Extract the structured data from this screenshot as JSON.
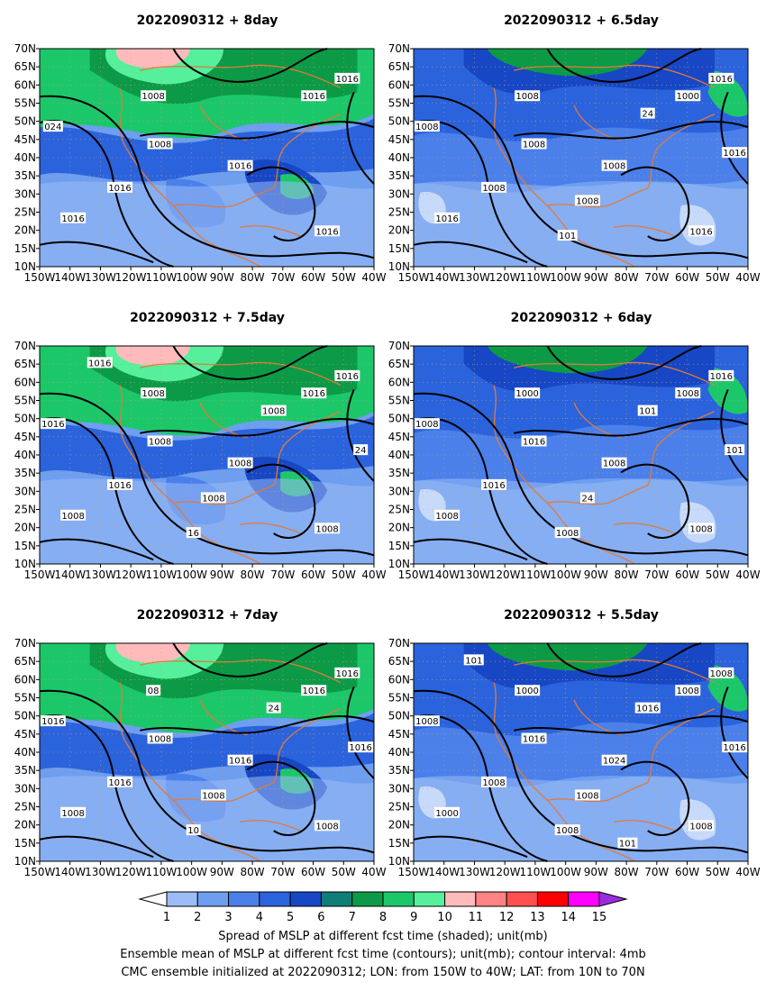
{
  "panels": [
    {
      "title": "2022090312  +  8day",
      "shading": "strong",
      "labels": [
        "1008",
        "1016",
        "1008",
        "1016",
        "1016",
        "1016",
        "1016",
        "1016",
        "024"
      ]
    },
    {
      "title": "2022090312  +  6.5day",
      "shading": "medium",
      "labels": [
        "1008",
        "1000",
        "1008",
        "1008",
        "1016",
        "1016",
        "1016",
        "1008",
        "1008",
        "1008",
        "24",
        "1016",
        "101"
      ]
    },
    {
      "title": "2022090312  +  7.5day",
      "shading": "strong",
      "labels": [
        "1008",
        "1016",
        "1008",
        "1008",
        "1008",
        "1008",
        "1016",
        "1016",
        "1016",
        "1008",
        "1008",
        "24",
        "16",
        "1016"
      ]
    },
    {
      "title": "2022090312  +  6day",
      "shading": "medium",
      "labels": [
        "1000",
        "1008",
        "1016",
        "1008",
        "1008",
        "1008",
        "1016",
        "1016",
        "1008",
        "24",
        "101",
        "101",
        "1008"
      ]
    },
    {
      "title": "2022090312  +  7day",
      "shading": "strong",
      "labels": [
        "08",
        "1016",
        "1008",
        "1016",
        "1008",
        "1008",
        "1016",
        "1016",
        "1016",
        "1008",
        "24",
        "1016",
        "10"
      ]
    },
    {
      "title": "2022090312  +  5.5day",
      "shading": "medium",
      "labels": [
        "1000",
        "1008",
        "1016",
        "1024",
        "1008",
        "1000",
        "1008",
        "1008",
        "1008",
        "1008",
        "1016",
        "1016",
        "1008",
        "101",
        "101"
      ]
    }
  ],
  "lat_ticks": [
    "70N",
    "65N",
    "60N",
    "55N",
    "50N",
    "45N",
    "40N",
    "35N",
    "30N",
    "25N",
    "20N",
    "15N",
    "10N"
  ],
  "lon_ticks": [
    "150W",
    "140W",
    "130W",
    "120W",
    "110W",
    "100W",
    "90W",
    "80W",
    "70W",
    "60W",
    "50W",
    "40W"
  ],
  "colorbar": {
    "colors": [
      "#ffffff",
      "#9bbcf6",
      "#6e9ef0",
      "#4b80ea",
      "#2b63dc",
      "#1747c4",
      "#0e7e76",
      "#0c9a46",
      "#1cc76a",
      "#56ef9c",
      "#ffbbbb",
      "#ff8383",
      "#ff4f4f",
      "#ff0000",
      "#ff00ff",
      "#9b2bdf"
    ],
    "labels": [
      "1",
      "2",
      "3",
      "4",
      "5",
      "6",
      "7",
      "8",
      "9",
      "10",
      "11",
      "12",
      "13",
      "14",
      "15"
    ]
  },
  "captions": [
    "Spread of MSLP at different fcst time (shaded); unit(mb)",
    "Ensemble mean of MSLP at different fcst time (contours); unit(mb); contour interval: 4mb",
    "CMC ensemble initialized at 2022090312; LON: from 150W to 40W; LAT: from 10N to 70N"
  ]
}
